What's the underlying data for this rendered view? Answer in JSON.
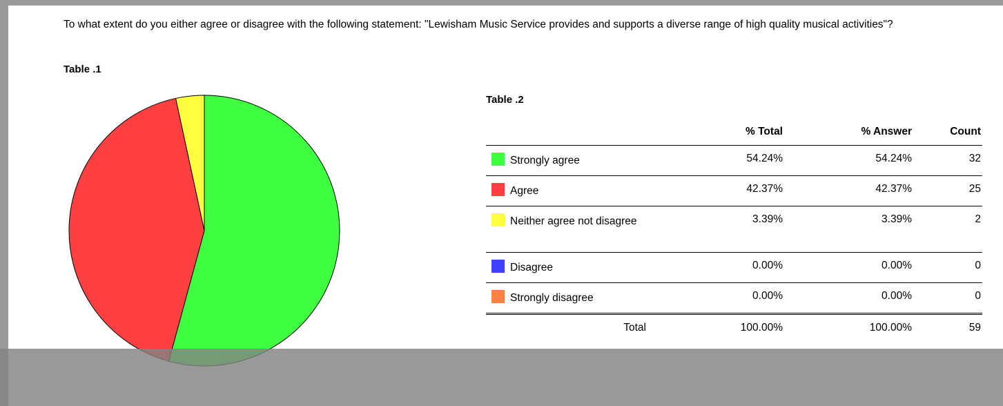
{
  "question": "To what extent do you either agree or disagree with the following statement: \"Lewisham Music Service provides and supports a diverse range of high quality musical activities\"?",
  "table1_label": "Table .1",
  "table2_label": "Table .2",
  "table_headers": {
    "label": "",
    "pct_total": "% Total",
    "pct_answer": "% Answer",
    "count": "Count"
  },
  "rows": [
    {
      "label": "Strongly agree",
      "pct_total": "54.24%",
      "pct_answer": "54.24%",
      "count": "32",
      "color": "#40ff40"
    },
    {
      "label": "Agree",
      "pct_total": "42.37%",
      "pct_answer": "42.37%",
      "count": "25",
      "color": "#ff4040"
    },
    {
      "label": "Neither agree not disagree",
      "pct_total": "3.39%",
      "pct_answer": "3.39%",
      "count": "2",
      "color": "#ffff40"
    },
    {
      "label": "Disagree",
      "pct_total": "0.00%",
      "pct_answer": "0.00%",
      "count": "0",
      "color": "#4040ff"
    },
    {
      "label": "Strongly disagree",
      "pct_total": "0.00%",
      "pct_answer": "0.00%",
      "count": "0",
      "color": "#ff8040"
    }
  ],
  "total": {
    "label": "Total",
    "pct_total": "100.00%",
    "pct_answer": "100.00%",
    "count": "59"
  },
  "chart_data": {
    "type": "pie",
    "title": "",
    "categories": [
      "Strongly agree",
      "Agree",
      "Neither agree not disagree",
      "Disagree",
      "Strongly disagree"
    ],
    "values": [
      32,
      25,
      2,
      0,
      0
    ],
    "colors": [
      "#40ff40",
      "#ff4040",
      "#ffff40",
      "#4040ff",
      "#ff8040"
    ],
    "start": "top",
    "direction": "clockwise"
  }
}
